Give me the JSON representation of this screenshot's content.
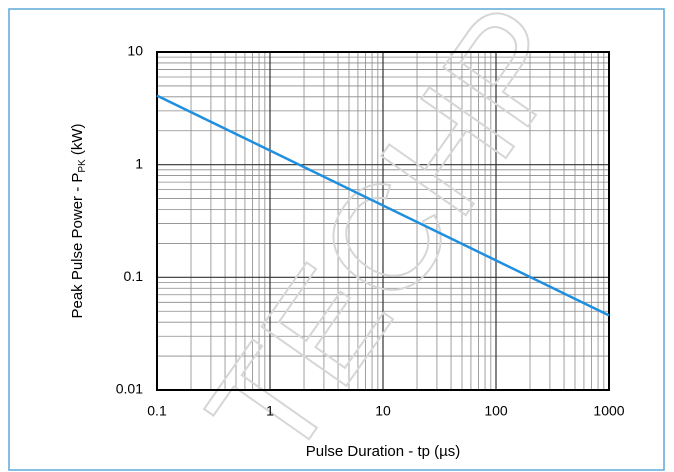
{
  "chart_data": {
    "type": "line",
    "xlabel": "Pulse Duration - tp (µs)",
    "ylabel": {
      "text": "Peak Pulse Power - P",
      "sub": "PK",
      "suffix": " (kW)"
    },
    "watermark": "TECHP",
    "x": [
      0.1,
      1000
    ],
    "series": [
      {
        "color": "#1f8fe0",
        "values": [
          4.1,
          0.046
        ]
      }
    ],
    "xlim": [
      0.1,
      1000
    ],
    "ylim": [
      0.01,
      10
    ],
    "xticks": [
      0.1,
      1,
      10,
      100,
      1000
    ],
    "yticks": [
      0.01,
      0.1,
      1,
      10
    ],
    "xscale": "log",
    "yscale": "log",
    "grid": true,
    "minor_grid": true
  }
}
